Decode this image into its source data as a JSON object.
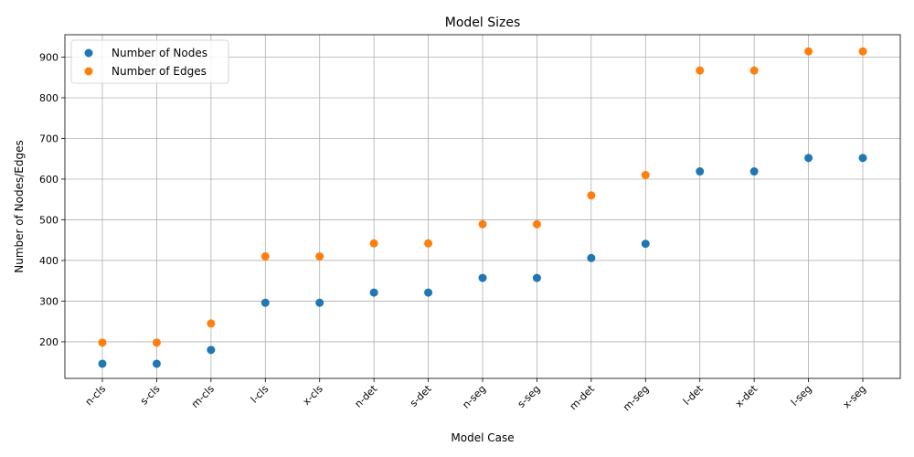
{
  "chart_data": {
    "type": "scatter",
    "title": "Model Sizes",
    "xlabel": "Model Case",
    "ylabel": "Number of Nodes/Edges",
    "categories": [
      "n-cls",
      "s-cls",
      "m-cls",
      "l-cls",
      "x-cls",
      "n-det",
      "s-det",
      "n-seg",
      "s-seg",
      "m-det",
      "m-seg",
      "l-det",
      "x-det",
      "l-seg",
      "x-seg"
    ],
    "series": [
      {
        "name": "Number of Nodes",
        "color": "#1f77b4",
        "values": [
          146,
          146,
          180,
          296,
          296,
          321,
          321,
          357,
          357,
          406,
          441,
          619,
          619,
          652,
          652
        ]
      },
      {
        "name": "Number of Edges",
        "color": "#ff7f0e",
        "values": [
          198,
          198,
          245,
          410,
          410,
          442,
          442,
          489,
          489,
          560,
          610,
          867,
          867,
          914,
          914
        ]
      }
    ],
    "ylim": [
      110,
      955
    ],
    "yticks": [
      200,
      300,
      400,
      500,
      600,
      700,
      800,
      900
    ],
    "grid": true,
    "legend_position": "top-left"
  }
}
